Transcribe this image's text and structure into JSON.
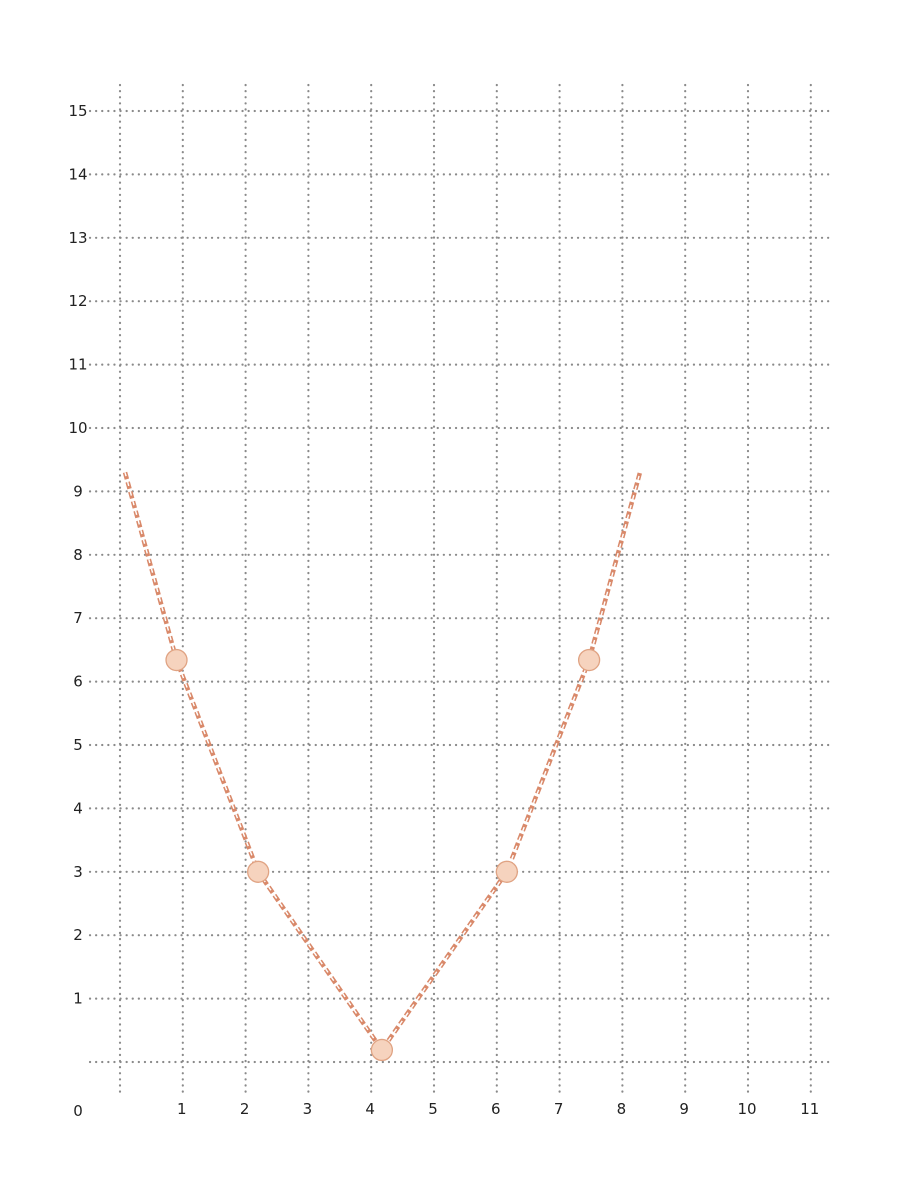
{
  "chart_data": {
    "type": "line",
    "origin_label": "0",
    "x_ticks": [
      "1",
      "2",
      "3",
      "4",
      "5",
      "6",
      "7",
      "8",
      "9",
      "10",
      "11"
    ],
    "y_ticks": [
      "1",
      "2",
      "3",
      "4",
      "5",
      "6",
      "7",
      "8",
      "9",
      "10",
      "11",
      "12",
      "13",
      "14",
      "15"
    ],
    "xlim": [
      0,
      11
    ],
    "ylim": [
      0,
      15
    ],
    "grid": "dotted",
    "chain_color": "#d9896a",
    "bead_color": "#f6d3be",
    "chain": [
      [
        0.08,
        9.3
      ],
      [
        0.9,
        6.34
      ],
      [
        2.2,
        3.0
      ],
      [
        4.17,
        0.19
      ],
      [
        6.16,
        3.0
      ],
      [
        7.47,
        6.34
      ],
      [
        8.28,
        9.3
      ]
    ],
    "beads": [
      [
        0.9,
        6.34
      ],
      [
        2.2,
        3.0
      ],
      [
        4.17,
        0.19
      ],
      [
        6.16,
        3.0
      ],
      [
        7.47,
        6.34
      ]
    ]
  }
}
